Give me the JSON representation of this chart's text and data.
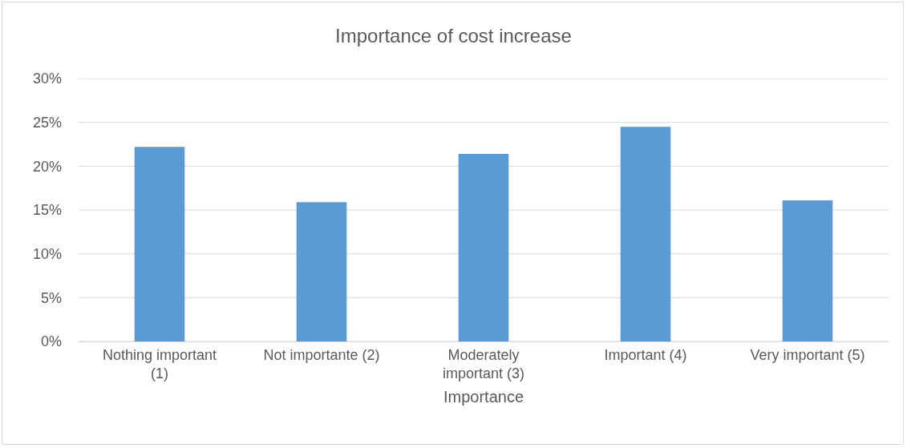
{
  "chart_data": {
    "type": "bar",
    "title": "Importance of cost increase",
    "xlabel": "Importance",
    "categories": [
      "Nothing important (1)",
      "Not importante (2)",
      "Moderately important (3)",
      "Important (4)",
      "Very important (5)"
    ],
    "values": [
      22.2,
      15.9,
      21.4,
      24.5,
      16.1
    ],
    "color": "#5b9bd5",
    "ylim": [
      0,
      30
    ],
    "yticks": [
      {
        "value": 0,
        "label": "0%"
      },
      {
        "value": 5,
        "label": "5%"
      },
      {
        "value": 10,
        "label": "10%"
      },
      {
        "value": 15,
        "label": "15%"
      },
      {
        "value": 20,
        "label": "20%"
      },
      {
        "value": 25,
        "label": "25%"
      },
      {
        "value": 30,
        "label": "30%"
      }
    ],
    "grid": "y"
  }
}
